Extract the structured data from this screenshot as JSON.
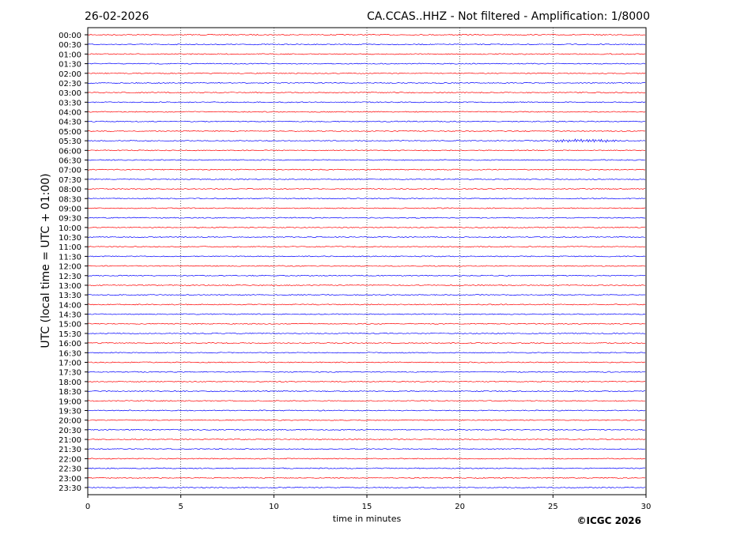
{
  "header": {
    "date": "26-02-2026",
    "title": "CA.CCAS..HHZ - Not filtered - Amplification: 1/8000"
  },
  "footer": {
    "copyright": "©ICGC 2026"
  },
  "colors": {
    "trace_a": "#ff0000",
    "trace_b": "#0000ff",
    "grid": "#000000"
  },
  "chart_data": {
    "type": "line",
    "subtype": "helicorder",
    "xlabel": "time in minutes",
    "ylabel": "UTC (local time = UTC + 01:00)",
    "xlim": [
      0,
      30
    ],
    "xticks": [
      "0",
      "5",
      "10",
      "15",
      "20",
      "25",
      "30"
    ],
    "grid": "vertical dotted at every 5 minutes",
    "rows": [
      "00:00",
      "00:30",
      "01:00",
      "01:30",
      "02:00",
      "02:30",
      "03:00",
      "03:30",
      "04:00",
      "04:30",
      "05:00",
      "05:30",
      "06:00",
      "06:30",
      "07:00",
      "07:30",
      "08:00",
      "08:30",
      "09:00",
      "09:30",
      "10:00",
      "10:30",
      "11:00",
      "11:30",
      "12:00",
      "12:30",
      "13:00",
      "13:30",
      "14:00",
      "14:30",
      "15:00",
      "15:30",
      "16:00",
      "16:30",
      "17:00",
      "17:30",
      "18:00",
      "18:30",
      "19:00",
      "19:30",
      "20:00",
      "20:30",
      "21:00",
      "21:30",
      "22:00",
      "22:30",
      "23:00",
      "23:30"
    ],
    "trace_colors": "alternating red / blue",
    "events": [
      {
        "row": "05:30",
        "start_minute": 25,
        "end_minute": 28.5,
        "description": "small oscillation"
      }
    ]
  }
}
